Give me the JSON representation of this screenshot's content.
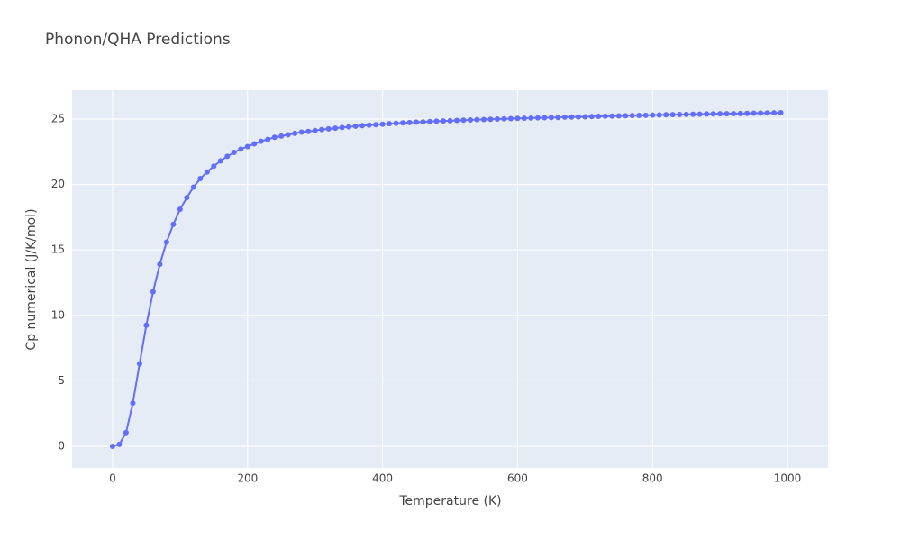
{
  "chart_data": {
    "type": "line",
    "title": "Phonon/QHA Predictions",
    "x_label": "Temperature (K)",
    "y_label": "Cp numerical (J/K/mol)",
    "x": [
      0,
      10,
      20,
      30,
      40,
      50,
      60,
      70,
      80,
      90,
      100,
      110,
      120,
      130,
      140,
      150,
      160,
      170,
      180,
      190,
      200,
      210,
      220,
      230,
      240,
      250,
      260,
      270,
      280,
      290,
      300,
      310,
      320,
      330,
      340,
      350,
      360,
      370,
      380,
      390,
      400,
      410,
      420,
      430,
      440,
      450,
      460,
      470,
      480,
      490,
      500,
      510,
      520,
      530,
      540,
      550,
      560,
      570,
      580,
      590,
      600,
      610,
      620,
      630,
      640,
      650,
      660,
      670,
      680,
      690,
      700,
      710,
      720,
      730,
      740,
      750,
      760,
      770,
      780,
      790,
      800,
      810,
      820,
      830,
      840,
      850,
      860,
      870,
      880,
      890,
      900,
      910,
      920,
      930,
      940,
      950,
      960,
      970,
      980,
      990
    ],
    "values": [
      0,
      0.15,
      1.05,
      3.3,
      6.3,
      9.25,
      11.8,
      13.9,
      15.6,
      16.95,
      18.1,
      19.0,
      19.8,
      20.45,
      20.95,
      21.4,
      21.8,
      22.15,
      22.45,
      22.7,
      22.9,
      23.1,
      23.3,
      23.45,
      23.6,
      23.7,
      23.8,
      23.9,
      24.0,
      24.05,
      24.12,
      24.2,
      24.25,
      24.3,
      24.35,
      24.4,
      24.45,
      24.5,
      24.53,
      24.57,
      24.6,
      24.64,
      24.67,
      24.7,
      24.73,
      24.76,
      24.78,
      24.81,
      24.83,
      24.85,
      24.87,
      24.89,
      24.91,
      24.93,
      24.95,
      24.96,
      24.98,
      25.0,
      25.01,
      25.03,
      25.05,
      25.06,
      25.07,
      25.09,
      25.1,
      25.11,
      25.12,
      25.14,
      25.15,
      25.16,
      25.17,
      25.19,
      25.2,
      25.21,
      25.22,
      25.24,
      25.25,
      25.26,
      25.27,
      25.28,
      25.3,
      25.31,
      25.32,
      25.33,
      25.34,
      25.35,
      25.36,
      25.37,
      25.38,
      25.39,
      25.4,
      25.4,
      25.41,
      25.42,
      25.43,
      25.44,
      25.45,
      25.46,
      25.47,
      25.48
    ],
    "color": "#636efa",
    "xlim": [
      -60,
      1060
    ],
    "xticks": [
      0,
      200,
      400,
      600,
      800,
      1000
    ],
    "ylim": [
      -1.65,
      27.2
    ],
    "yticks": [
      0,
      5,
      10,
      15,
      20,
      25
    ],
    "grid": true
  }
}
